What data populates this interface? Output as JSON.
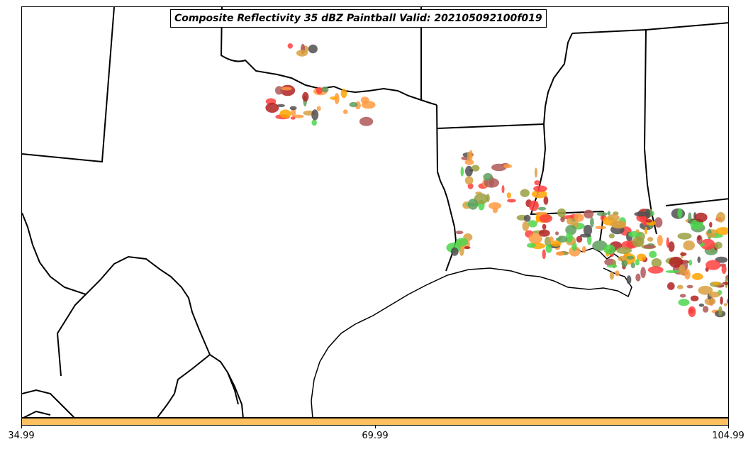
{
  "map": {
    "title": "Composite Reflectivity 35 dBZ Paintball Valid: 202105092100f019",
    "region": "Texas / Lower Mississippi Valley",
    "paintball_colors": [
      "#ff4040",
      "#b22222",
      "#5e9e5e",
      "#9aa040",
      "#ff9a40",
      "#4cd64c",
      "#b05858",
      "#505050",
      "#ffa500",
      "#d9a040"
    ]
  },
  "colorbar": {
    "color": "#ffc060",
    "ticks": [
      "34.99",
      "69.99",
      "104.99"
    ]
  }
}
